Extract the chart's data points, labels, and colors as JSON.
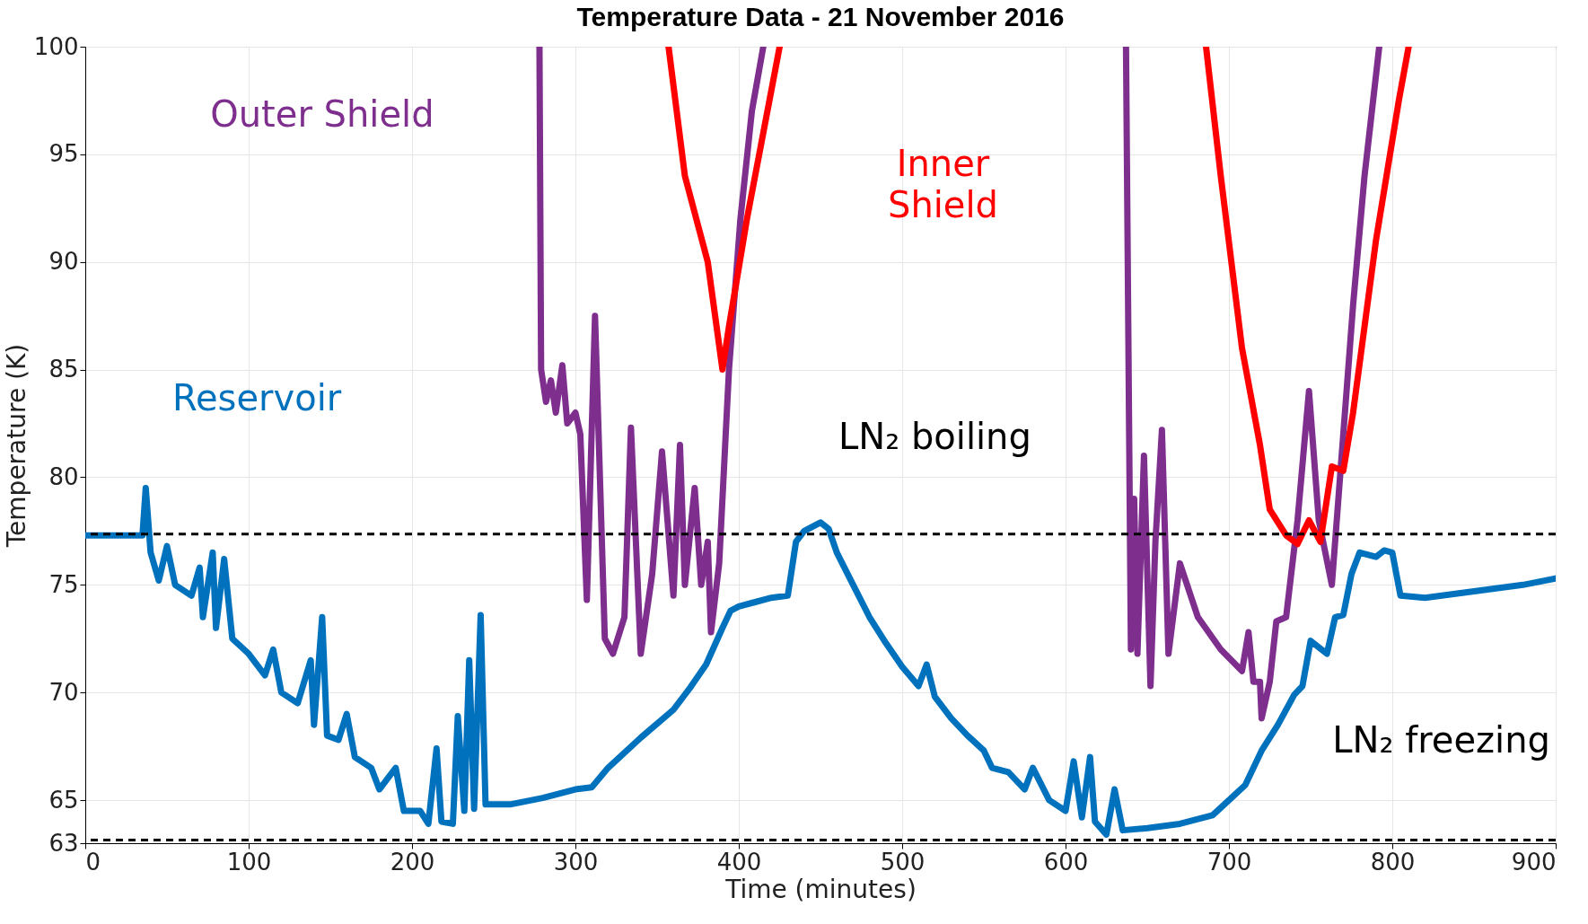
{
  "chart_data": {
    "type": "line",
    "title": "Temperature Data - 21 November 2016",
    "xlabel": "Time (minutes)",
    "ylabel": "Temperature (K)",
    "xlim": [
      0,
      900
    ],
    "xticks": [
      0,
      100,
      200,
      300,
      400,
      500,
      600,
      700,
      800,
      900
    ],
    "ylim": [
      63,
      100
    ],
    "yticks": [
      63,
      65,
      70,
      75,
      80,
      85,
      90,
      95,
      100
    ],
    "grid": true,
    "marker": "none",
    "line_style": "solid",
    "series": [
      {
        "name": "Reservoir",
        "color": "#0072bd",
        "x": [
          0,
          35,
          37,
          40,
          45,
          50,
          55,
          65,
          70,
          72,
          78,
          80,
          85,
          90,
          100,
          110,
          115,
          120,
          130,
          138,
          140,
          145,
          148,
          155,
          160,
          165,
          175,
          180,
          190,
          195,
          205,
          210,
          215,
          218,
          225,
          228,
          232,
          235,
          238,
          242,
          245,
          260,
          280,
          300,
          310,
          320,
          340,
          360,
          370,
          380,
          390,
          395,
          400,
          410,
          420,
          430,
          435,
          440,
          450,
          455,
          460,
          470,
          480,
          490,
          500,
          510,
          515,
          520,
          530,
          540,
          550,
          555,
          565,
          575,
          580,
          590,
          600,
          605,
          610,
          615,
          618,
          625,
          630,
          635,
          650,
          670,
          690,
          700,
          710,
          720,
          730,
          740,
          745,
          750,
          760,
          765,
          770,
          775,
          780,
          790,
          795,
          800,
          805,
          820,
          850,
          880,
          900
        ],
        "values": [
          77.3,
          77.3,
          79.5,
          76.5,
          75.2,
          76.8,
          75,
          74.5,
          75.8,
          73.5,
          76.5,
          73,
          76.2,
          72.5,
          71.8,
          70.8,
          72,
          70,
          69.5,
          71.5,
          68.5,
          73.5,
          68,
          67.8,
          69,
          67,
          66.5,
          65.5,
          66.5,
          64.5,
          64.5,
          63.9,
          67.4,
          64,
          63.9,
          68.9,
          64.5,
          71.5,
          64.6,
          73.6,
          64.8,
          64.8,
          65.1,
          65.5,
          65.6,
          66.5,
          67.9,
          69.2,
          70.2,
          71.3,
          73,
          73.8,
          74,
          74.2,
          74.4,
          74.5,
          77,
          77.5,
          77.9,
          77.6,
          76.5,
          75,
          73.5,
          72.3,
          71.2,
          70.3,
          71.3,
          69.8,
          68.8,
          68,
          67.3,
          66.5,
          66.3,
          65.5,
          66.5,
          65,
          64.5,
          66.8,
          64.2,
          67,
          64,
          63.4,
          65.5,
          63.6,
          63.7,
          63.9,
          64.3,
          65,
          65.7,
          67.3,
          68.5,
          69.9,
          70.3,
          72.4,
          71.8,
          73.5,
          73.6,
          75.5,
          76.5,
          76.3,
          76.6,
          76.5,
          74.5,
          74.4,
          74.7,
          75,
          75.3
        ]
      },
      {
        "name": "Outer Shield",
        "color": "#7e2f8e",
        "x": [
          278,
          279,
          282,
          285,
          288,
          292,
          295,
          300,
          303,
          307,
          312,
          318,
          323,
          330,
          334,
          340,
          347,
          353,
          360,
          364,
          367,
          373,
          377,
          381,
          383,
          388,
          394,
          401,
          408,
          415,
          500,
          637,
          640,
          642,
          644,
          648,
          652,
          655,
          659,
          663,
          670,
          681,
          695,
          708,
          712,
          715,
          719,
          720,
          725,
          729,
          735,
          742,
          749,
          755,
          763,
          770,
          776,
          783,
          792
        ],
        "values": [
          100,
          85,
          83.5,
          84.5,
          83,
          85.2,
          82.5,
          83,
          82,
          74.3,
          87.5,
          72.5,
          71.8,
          73.5,
          82.3,
          71.8,
          75.5,
          81.2,
          74.5,
          81.5,
          75,
          79.5,
          75,
          77,
          72.8,
          76,
          85,
          92,
          97,
          100,
          null,
          100,
          72,
          79,
          71.8,
          81,
          70.3,
          77,
          82.2,
          71.8,
          76,
          73.5,
          72,
          71,
          72.8,
          70.5,
          70.5,
          68.8,
          70.5,
          73.3,
          73.5,
          78,
          84,
          78,
          75,
          82,
          88,
          94,
          100
        ]
      },
      {
        "name": "Inner Shield",
        "color": "#ff0000",
        "x": [
          357,
          367,
          381,
          390,
          394,
          405,
          415,
          425,
          550,
          686,
          695,
          708,
          719,
          725,
          735,
          742,
          749,
          756,
          763,
          770,
          776,
          790,
          804,
          810
        ],
        "values": [
          100,
          94,
          90,
          85,
          87,
          92,
          96,
          100,
          null,
          100,
          94,
          86,
          81.5,
          78.5,
          77.3,
          76.9,
          78,
          77,
          80.5,
          80.3,
          83,
          91,
          97.5,
          100
        ]
      }
    ],
    "ref_lines": [
      {
        "axis": "y",
        "value": 77.36,
        "label": "LN₂ boiling",
        "color": "#000000",
        "line_style": "dashed"
      },
      {
        "axis": "y",
        "value": 63.15,
        "label": "LN₂ freezing",
        "color": "#000000",
        "line_style": "dashed"
      }
    ]
  }
}
